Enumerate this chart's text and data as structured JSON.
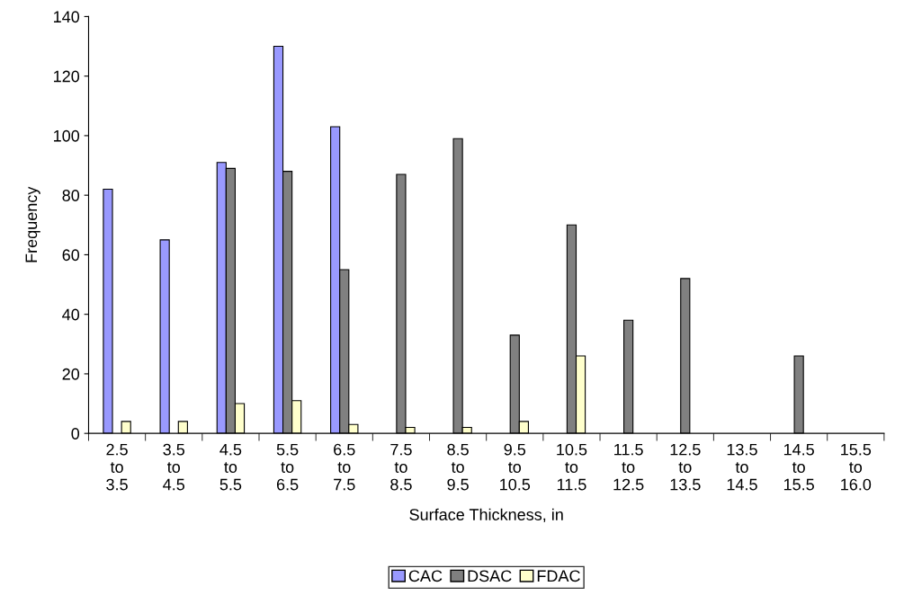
{
  "chart_data": {
    "type": "bar",
    "xlabel": "Surface Thickness, in",
    "ylabel": "Frequency",
    "categories": [
      "2.5\nto\n3.5",
      "3.5\nto\n4.5",
      "4.5\nto\n5.5",
      "5.5\nto\n6.5",
      "6.5\nto\n7.5",
      "7.5\nto\n8.5",
      "8.5\nto\n9.5",
      "9.5\nto\n10.5",
      "10.5\nto\n11.5",
      "11.5\nto\n12.5",
      "12.5\nto\n13.5",
      "13.5\nto\n14.5",
      "14.5\nto\n15.5",
      "15.5\nto\n16.0"
    ],
    "series": [
      {
        "name": "CAC",
        "color": "#9999ff",
        "values": [
          82,
          65,
          91,
          130,
          103,
          null,
          null,
          null,
          null,
          null,
          null,
          null,
          null,
          null
        ]
      },
      {
        "name": "DSAC",
        "color": "#808080",
        "values": [
          null,
          null,
          89,
          88,
          55,
          87,
          99,
          33,
          70,
          38,
          52,
          null,
          26,
          null
        ]
      },
      {
        "name": "FDAC",
        "color": "#ffffcc",
        "values": [
          4,
          4,
          10,
          11,
          3,
          2,
          2,
          4,
          26,
          null,
          null,
          null,
          null,
          null
        ]
      }
    ],
    "ylim": [
      0,
      140
    ],
    "yticks": [
      0,
      20,
      40,
      60,
      80,
      100,
      120,
      140
    ],
    "grid": false,
    "legend": "bottom"
  }
}
